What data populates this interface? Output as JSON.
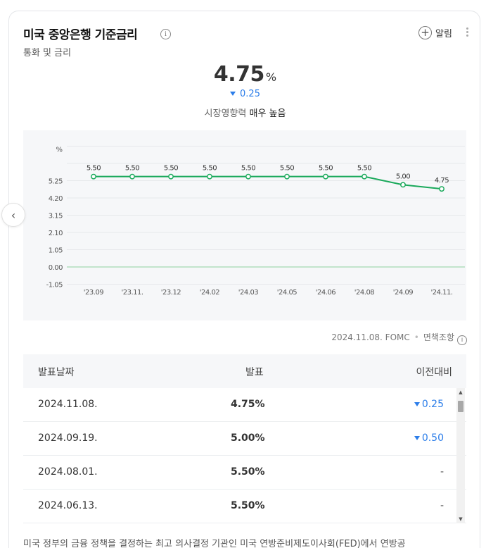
{
  "header": {
    "title": "미국 중앙은행 기준금리",
    "info_icon": "i",
    "subtitle": "통화 및 금리",
    "alert_label": "알림"
  },
  "summary": {
    "value": "4.75",
    "unit": "%",
    "change": "0.25",
    "impact_label": "시장영향력",
    "impact_level": "매우 높음"
  },
  "chart_data": {
    "type": "line",
    "unit_label": "%",
    "x": [
      "'23.09",
      "'23.11.",
      "'23.12",
      "'24.02",
      "'24.03",
      "'24.05",
      "'24.06",
      "'24.08",
      "'24.09",
      "'24.11."
    ],
    "series": [
      {
        "values": [
          5.5,
          5.5,
          5.5,
          5.5,
          5.5,
          5.5,
          5.5,
          5.5,
          5.0,
          4.75
        ]
      }
    ],
    "data_labels": [
      "5.50",
      "5.50",
      "5.50",
      "5.50",
      "5.50",
      "5.50",
      "5.50",
      "5.50",
      "5.00",
      "4.75"
    ],
    "y_ticks": [
      "5.25",
      "4.20",
      "3.15",
      "2.10",
      "1.05",
      "0.00",
      "-1.05"
    ],
    "y_tick_values": [
      5.25,
      4.2,
      3.15,
      2.1,
      1.05,
      0.0,
      -1.05
    ],
    "ylim": [
      -1.05,
      7.35
    ],
    "grid": true,
    "line_color": "#1aa95b",
    "zero_line_color": "#8fd19e"
  },
  "footnote": {
    "date_source": "2024.11.08. FOMC",
    "disclaimer": "면책조항",
    "disclaimer_icon": "i"
  },
  "table": {
    "headers": {
      "date": "발표날짜",
      "value": "발표",
      "change": "이전대비"
    },
    "rows": [
      {
        "date": "2024.11.08.",
        "value": "4.75%",
        "change": "0.25",
        "direction": "down"
      },
      {
        "date": "2024.09.19.",
        "value": "5.00%",
        "change": "0.50",
        "direction": "down"
      },
      {
        "date": "2024.08.01.",
        "value": "5.50%",
        "change": "-",
        "direction": "flat"
      },
      {
        "date": "2024.06.13.",
        "value": "5.50%",
        "change": "-",
        "direction": "flat"
      }
    ]
  },
  "description": "미국 정부의 금융 정책을 결정하는 최고 의사결정 기관인 미국 연방준비제도이사회(FED)에서 연방공",
  "colors": {
    "accent_blue": "#2b7de9",
    "line_green": "#1aa95b"
  }
}
